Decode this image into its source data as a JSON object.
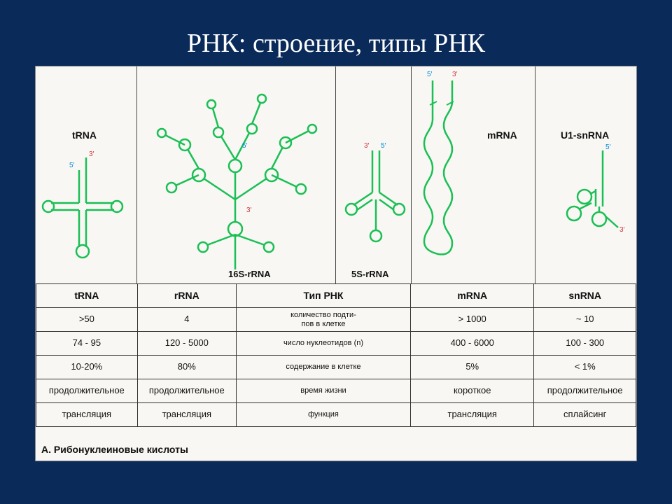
{
  "title": "РНК: строение, типы РНК",
  "caption": "А. Рибонуклеиновые кислоты",
  "colors": {
    "rna_stroke": "#1abf55",
    "end5": "#008ad8",
    "end3": "#d1333f",
    "ink": "#111111",
    "card_bg": "#f8f7f3",
    "slide_bg": "#0a2a5a",
    "border": "#333333"
  },
  "diagram": {
    "panels": {
      "trna": {
        "label": "tRNA",
        "end5": "5′",
        "end3": "3′"
      },
      "rrna": {
        "label": "16S-rRNA",
        "end5": "5′",
        "end3": "3′"
      },
      "s5": {
        "label": "5S-rRNA",
        "end5": "5′",
        "end3": "3′"
      },
      "mrna": {
        "label": "mRNA",
        "end5": "5′",
        "end3": "3′"
      },
      "sn": {
        "label": "U1-snRNA",
        "end5": "5′",
        "end3": "3′"
      }
    }
  },
  "table": {
    "type": "table",
    "col_widths_pct": [
      16.9,
      16.5,
      16.5,
      12.6,
      20.6,
      17.0
    ],
    "headers": [
      "tRNA",
      "rRNA",
      "Тип РНК",
      "",
      "mRNA",
      "snRNA"
    ],
    "row_labels": [
      "количество подти-\nпов в клетке",
      "число нуклеотидов (n)",
      "содержание в клетке",
      "время жизни",
      "функция"
    ],
    "rows": [
      [
        ">50",
        "4",
        "> 1000",
        "~ 10"
      ],
      [
        "74 - 95",
        "120 - 5000",
        "400 - 6000",
        "100 - 300"
      ],
      [
        "10-20%",
        "80%",
        "5%",
        "< 1%"
      ],
      [
        "продолжительное",
        "продолжительное",
        "короткое",
        "продолжительное"
      ],
      [
        "трансляция",
        "трансляция",
        "трансляция",
        "сплайсинг"
      ]
    ]
  }
}
